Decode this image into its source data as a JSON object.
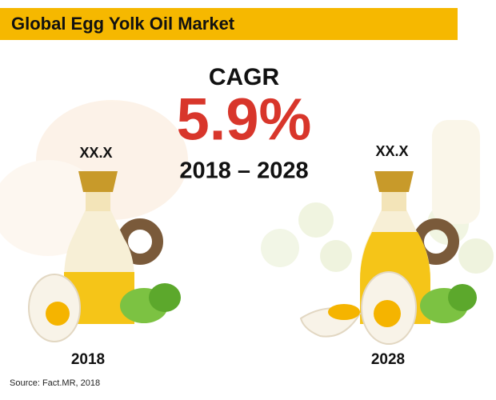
{
  "header": {
    "title": "Global Egg Yolk Oil Market"
  },
  "cagr": {
    "label": "CAGR",
    "value": "5.9%",
    "period": "2018 – 2028"
  },
  "markets": [
    {
      "value": "XX.X",
      "year": "2018"
    },
    {
      "value": "XX.X",
      "year": "2028"
    }
  ],
  "source": "Source: Fact.MR, 2018"
}
